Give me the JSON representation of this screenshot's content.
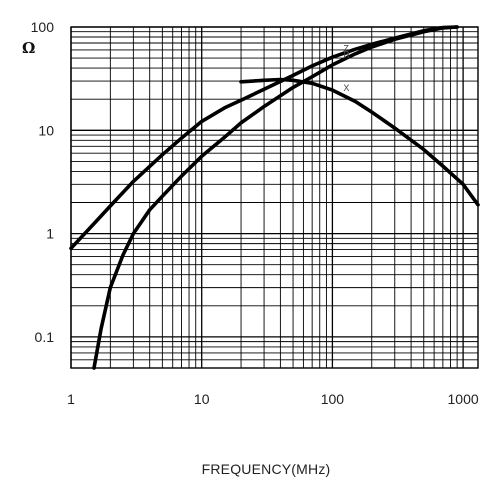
{
  "chart_data": {
    "type": "line",
    "title": "",
    "xlabel": "FREQUENCY(MHz)",
    "ylabel": "Ω",
    "x_scale": "log",
    "y_scale": "log",
    "xlim": [
      1,
      1300
    ],
    "ylim": [
      0.05,
      100
    ],
    "grid": true,
    "x_ticks": [
      {
        "value": 1,
        "label": "1"
      },
      {
        "value": 10,
        "label": "10"
      },
      {
        "value": 100,
        "label": "100"
      },
      {
        "value": 1000,
        "label": "1000"
      }
    ],
    "y_ticks": [
      {
        "value": 0.1,
        "label": "0.1"
      },
      {
        "value": 1,
        "label": "1"
      },
      {
        "value": 10,
        "label": "10"
      },
      {
        "value": 100,
        "label": "100"
      }
    ],
    "series": [
      {
        "name": "Z",
        "x": [
          1,
          1.5,
          2,
          3,
          5,
          7,
          10,
          15,
          20,
          30,
          50,
          70,
          100,
          150,
          200,
          300,
          500,
          700,
          900
        ],
        "y": [
          0.72,
          1.25,
          1.85,
          3.2,
          5.8,
          8.4,
          12.2,
          16.5,
          19.5,
          25,
          34,
          42,
          51,
          61,
          68,
          78,
          92,
          99,
          100
        ]
      },
      {
        "name": "R",
        "x": [
          1.5,
          1.7,
          2,
          2.5,
          3,
          4,
          5,
          7,
          10,
          15,
          20,
          30,
          50,
          70,
          100,
          150,
          200,
          300,
          500,
          700,
          900
        ],
        "y": [
          0.05,
          0.12,
          0.3,
          0.62,
          1.0,
          1.7,
          2.3,
          3.6,
          5.6,
          8.6,
          11.8,
          17,
          26,
          33,
          43,
          55,
          64,
          76,
          90,
          98,
          100
        ]
      },
      {
        "name": "X",
        "x": [
          20,
          30,
          40,
          50,
          70,
          100,
          150,
          200,
          300,
          500,
          700,
          1000,
          1300
        ],
        "y": [
          29.5,
          30.5,
          31,
          30.5,
          28.5,
          24.5,
          19,
          15,
          10.5,
          6.5,
          4.5,
          3.0,
          1.9
        ]
      }
    ]
  }
}
